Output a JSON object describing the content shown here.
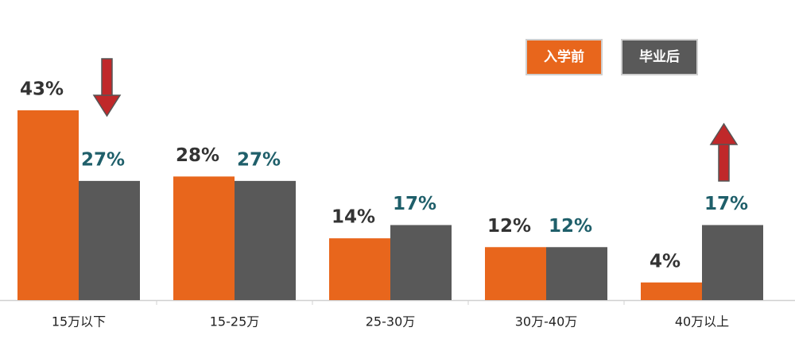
{
  "chart_data": {
    "type": "bar",
    "categories": [
      "15万以下",
      "15-25万",
      "25-30万",
      "30万-40万",
      "40万以上"
    ],
    "series": [
      {
        "name": "入学前",
        "color": "#e8661c",
        "values": [
          43,
          28,
          14,
          12,
          4
        ],
        "value_labels": [
          "43%",
          "28%",
          "14%",
          "12%",
          "4%"
        ]
      },
      {
        "name": "毕业后",
        "color": "#595959",
        "values": [
          27,
          27,
          17,
          12,
          17
        ],
        "value_labels": [
          "27%",
          "27%",
          "17%",
          "12%",
          "17%"
        ]
      }
    ]
  }
}
